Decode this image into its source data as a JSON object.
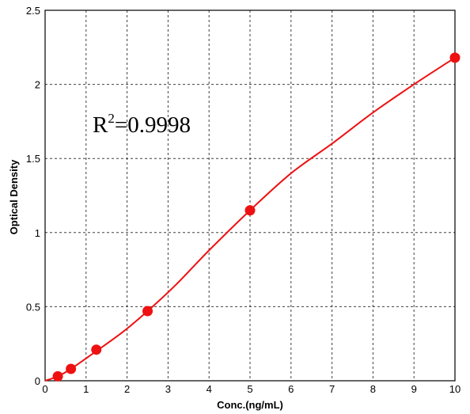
{
  "chart_data": {
    "type": "scatter",
    "title": "",
    "xlabel": "Conc.(ng/mL)",
    "ylabel": "Optical Density",
    "xlim": [
      0,
      10
    ],
    "ylim": [
      0,
      2.5
    ],
    "xticks": [
      "0",
      "1",
      "2",
      "3",
      "4",
      "5",
      "6",
      "7",
      "8",
      "9",
      "10"
    ],
    "yticks": [
      "0",
      "0.5",
      "1",
      "1.5",
      "2",
      "2.5"
    ],
    "grid": true,
    "annotation": {
      "base": "R",
      "sup": "2",
      "rest": "=0.9998"
    },
    "series": [
      {
        "kind": "points",
        "color": "#ee1111",
        "x": [
          0.31,
          0.63,
          1.25,
          2.5,
          5,
          10
        ],
        "y": [
          0.03,
          0.08,
          0.21,
          0.47,
          1.15,
          2.18
        ]
      },
      {
        "kind": "fitted-curve",
        "color": "#ee1111",
        "x": [
          0,
          0.31,
          0.63,
          1.25,
          1.9,
          2.5,
          3.2,
          4,
          5,
          6,
          7,
          8,
          9,
          10
        ],
        "y": [
          0.0,
          0.03,
          0.08,
          0.2,
          0.33,
          0.47,
          0.65,
          0.88,
          1.15,
          1.4,
          1.6,
          1.81,
          2.0,
          2.18
        ]
      }
    ]
  }
}
